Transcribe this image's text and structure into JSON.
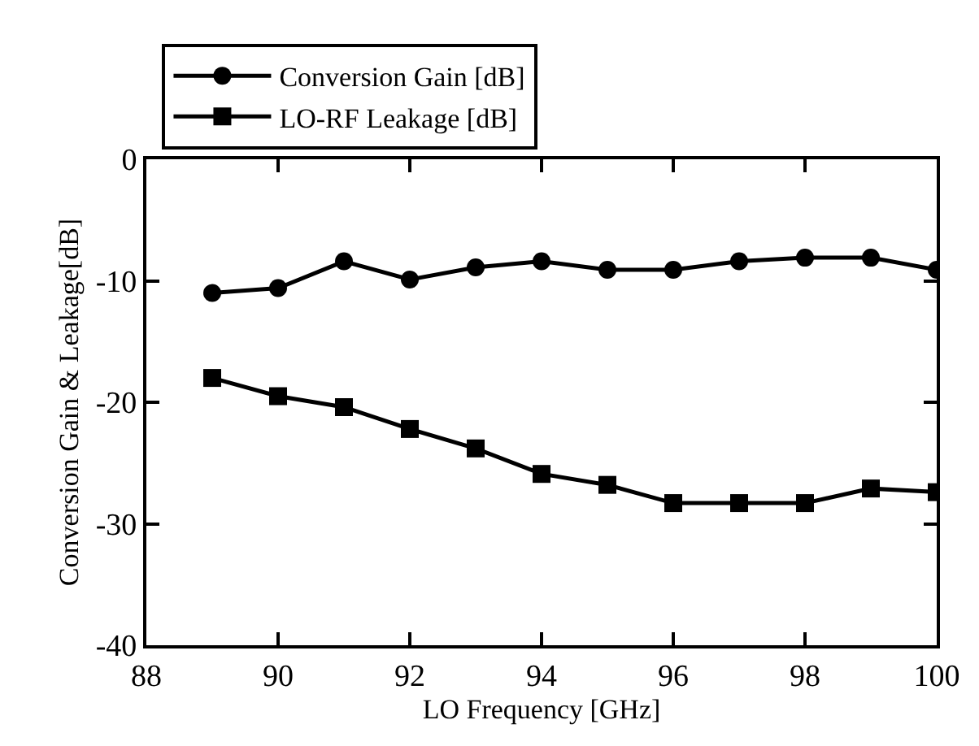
{
  "chart_data": {
    "type": "line",
    "xlabel": "LO Frequency [GHz]",
    "ylabel": "Conversion Gain & Leakage[dB]",
    "x": [
      89,
      90,
      91,
      92,
      93,
      94,
      95,
      96,
      97,
      98,
      99,
      100
    ],
    "series": [
      {
        "name": "Conversion Gain [dB]",
        "color": "#000000",
        "marker": "circle",
        "values": [
          -11.0,
          -10.6,
          -8.4,
          -9.9,
          -8.9,
          -8.4,
          -9.1,
          -9.1,
          -8.4,
          -8.1,
          -8.1,
          -9.1
        ]
      },
      {
        "name": "LO-RF Leakage [dB]",
        "color": "#000000",
        "marker": "square",
        "values": [
          -18.0,
          -19.5,
          -20.4,
          -22.2,
          -23.8,
          -25.9,
          -26.8,
          -28.3,
          -28.3,
          -28.3,
          -27.1,
          -27.4
        ]
      }
    ],
    "xlim": [
      88,
      100
    ],
    "xticks": [
      88,
      90,
      92,
      94,
      96,
      98,
      100
    ],
    "ylim": [
      -40,
      0
    ],
    "yticks": [
      -40,
      -30,
      -20,
      -10,
      0
    ],
    "legend": "top",
    "line_style": "solid"
  }
}
